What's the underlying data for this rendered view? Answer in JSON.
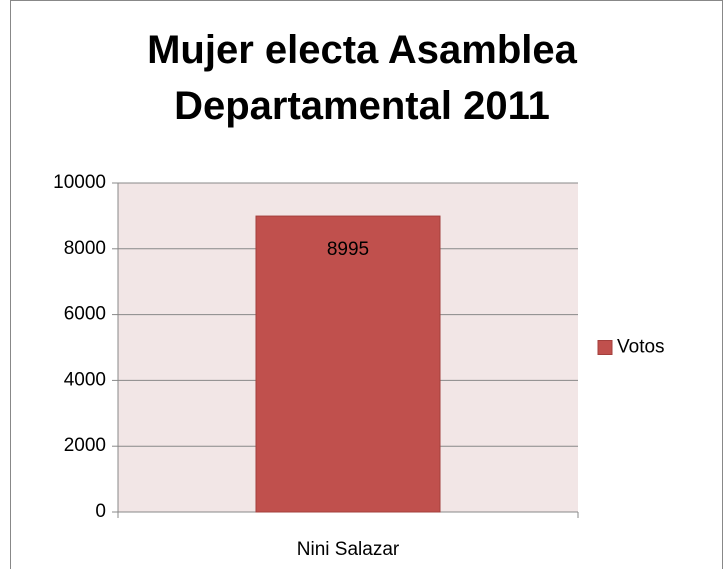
{
  "chart_data": {
    "type": "bar",
    "title": "Mujer electa Asamblea Departamental 2011",
    "categories": [
      "Nini Salazar"
    ],
    "series": [
      {
        "name": "Votos",
        "color": "#c0504d",
        "values": [
          8995
        ]
      }
    ],
    "ylim": [
      0,
      10000
    ],
    "yticks": [
      0,
      2000,
      4000,
      6000,
      8000,
      10000
    ],
    "grid": true,
    "legend": "right"
  }
}
